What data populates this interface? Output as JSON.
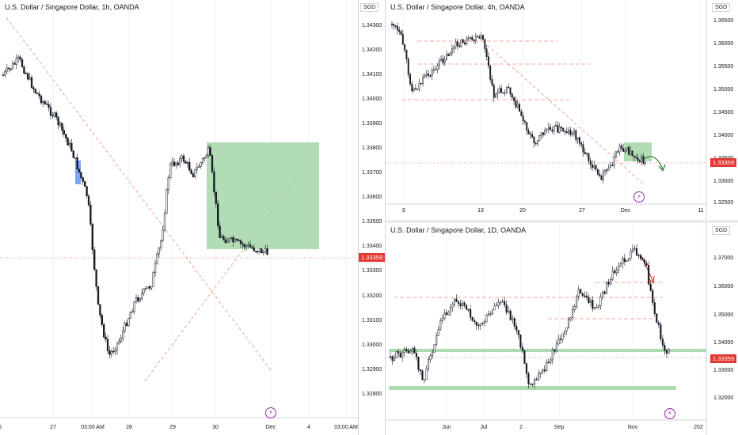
{
  "charts": {
    "main": {
      "title": "U.S. Dollar / Singapore Dollar, 1h, OANDA",
      "last_price": "1.33359",
      "y_ticks": [
        "1.33900",
        "1.33800",
        "1.33700",
        "1.33600",
        "1.33500",
        "1.33400",
        "1.33300",
        "1.33200",
        "1.33100",
        "1.33000",
        "1.32900",
        "1.32800"
      ],
      "x_ticks": [
        "27",
        "03:00 AM",
        "28",
        "29",
        "30",
        "Dec",
        "4",
        "03:00 AM",
        "6"
      ],
      "alert_icon": "lightning-icon"
    },
    "h4": {
      "title": "U.S. Dollar / Singapore Dollar, 4h, OANDA",
      "currency": "SGD",
      "last_price": "1.33359",
      "y_ticks": [
        "1.36500",
        "1.36000",
        "1.35500",
        "1.35000",
        "1.34500",
        "1.34000",
        "1.33500",
        "1.33000",
        "1.32500"
      ],
      "x_ticks": [
        "6",
        "13",
        "20",
        "27",
        "Dec",
        "11"
      ],
      "alert_icon": "lightning-icon"
    },
    "d1": {
      "title": "U.S. Dollar / Singapore Dollar, 1D, OANDA",
      "currency": "SGD",
      "last_price": "1.33359",
      "y_ticks": [
        "1.37000",
        "1.36000",
        "1.35000",
        "1.34000",
        "1.33000",
        "1.32000"
      ],
      "x_ticks": [
        "Jun",
        "Jul",
        "2",
        "Sep",
        "Nov",
        "202"
      ],
      "alert_icon": "lightning-icon"
    },
    "middle_axis": {
      "currency": "SGD",
      "y_ticks": [
        "1.34300",
        "1.34200",
        "1.34100",
        "1.34000",
        "1.33900",
        "1.33800",
        "1.33700",
        "1.33600",
        "1.33500",
        "1.33400",
        "1.33300",
        "1.33200",
        "1.33100",
        "1.33000",
        "1.32900",
        "1.32800"
      ]
    }
  },
  "colors": {
    "up": "#26a69a",
    "down": "#131722",
    "candle": "#131722",
    "zone_green": "#a5d6a7",
    "support_red": "#f28b82",
    "price_red": "#e53935",
    "arrow_red": "#e53935",
    "arrow_green": "#2e7d32",
    "blue_marker": "#5c8df6"
  }
}
